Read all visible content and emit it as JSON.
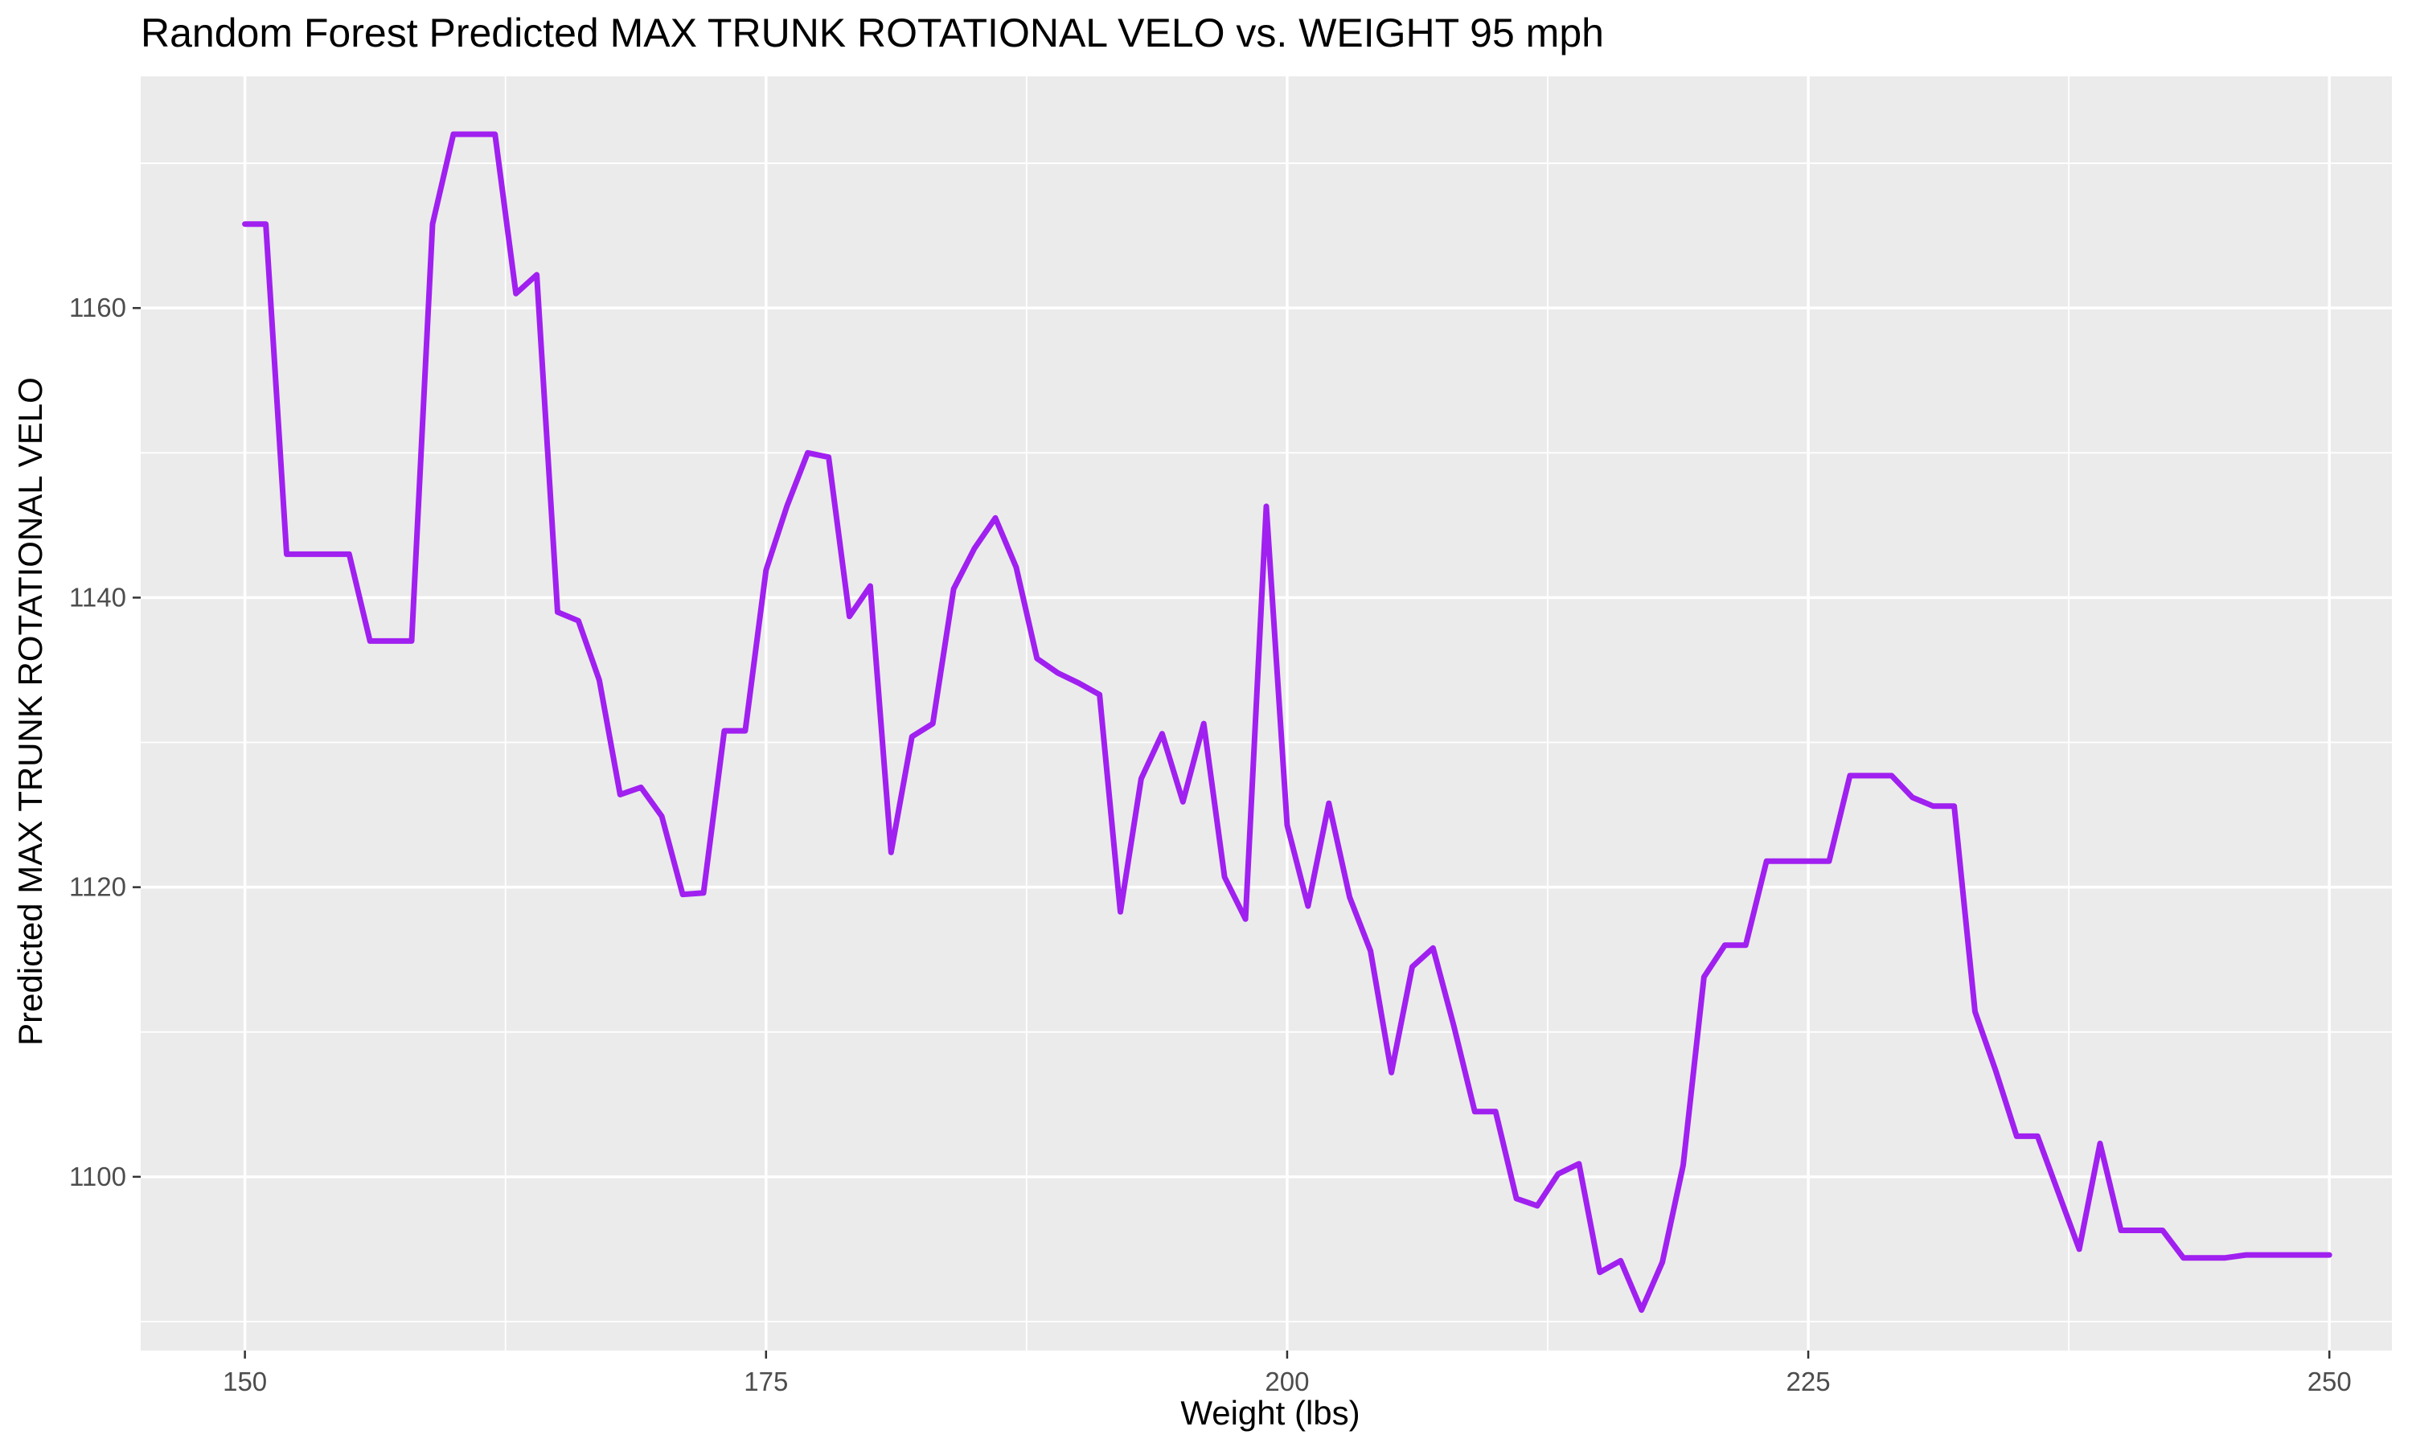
{
  "chart_data": {
    "type": "line",
    "title": "Random Forest Predicted MAX TRUNK ROTATIONAL VELO vs. WEIGHT 95 mph",
    "xlabel": "Weight (lbs)",
    "ylabel": "Predicted MAX TRUNK ROTATIONAL VELO",
    "xlim": [
      145,
      253
    ],
    "ylim": [
      1088,
      1176
    ],
    "x_ticks": [
      150,
      175,
      200,
      225,
      250
    ],
    "y_ticks": [
      1100,
      1120,
      1140,
      1160
    ],
    "grid": true,
    "background": "#ebebeb",
    "line_color": "#a020f0",
    "series": [
      {
        "x": [
          150,
          151,
          152,
          153,
          154,
          155,
          156,
          157,
          158,
          159,
          160,
          161,
          162,
          163,
          164,
          165,
          166,
          167,
          168,
          169,
          170,
          171,
          172,
          173,
          174,
          175,
          176,
          177,
          178,
          179,
          180,
          181,
          182,
          183,
          184,
          185,
          186,
          187,
          188,
          189,
          190,
          191,
          192,
          193,
          194,
          195,
          196,
          197,
          198,
          199,
          200,
          201,
          202,
          203,
          204,
          205,
          206,
          207,
          208,
          209,
          210,
          211,
          212,
          213,
          214,
          215,
          216,
          217,
          218,
          219,
          220,
          221,
          222,
          223,
          224,
          225,
          226,
          227,
          228,
          229,
          230,
          231,
          232,
          233,
          234,
          235,
          236,
          237,
          238,
          239,
          240,
          241,
          242,
          243,
          244,
          245,
          246,
          247,
          248,
          249,
          250
        ],
        "y": [
          1165.8,
          1165.8,
          1143.0,
          1143.0,
          1143.0,
          1143.0,
          1137.0,
          1137.0,
          1137.0,
          1165.8,
          1172.0,
          1172.0,
          1172.0,
          1161.0,
          1162.3,
          1139.0,
          1138.4,
          1134.3,
          1126.4,
          1126.9,
          1124.9,
          1119.5,
          1119.6,
          1130.8,
          1130.8,
          1141.9,
          1146.3,
          1150.0,
          1149.7,
          1138.7,
          1140.8,
          1122.4,
          1130.4,
          1131.3,
          1140.6,
          1143.4,
          1145.5,
          1142.1,
          1135.8,
          1134.8,
          1134.1,
          1133.3,
          1118.3,
          1127.5,
          1130.6,
          1125.9,
          1131.3,
          1120.7,
          1117.8,
          1146.3,
          1124.3,
          1118.7,
          1125.8,
          1119.3,
          1115.6,
          1107.2,
          1114.5,
          1115.8,
          1110.4,
          1104.5,
          1104.5,
          1098.5,
          1098.0,
          1100.2,
          1100.9,
          1093.4,
          1094.2,
          1090.8,
          1094.1,
          1100.8,
          1113.8,
          1116.0,
          1116.0,
          1121.8,
          1121.8,
          1121.8,
          1121.8,
          1127.7,
          1127.7,
          1127.7,
          1126.2,
          1125.6,
          1125.6,
          1111.4,
          1107.3,
          1102.8,
          1102.8,
          1098.9,
          1095.0,
          1102.3,
          1096.3,
          1096.3,
          1096.3,
          1094.4,
          1094.4,
          1094.4,
          1094.6,
          1094.6,
          1094.6,
          1094.6,
          1094.6
        ]
      }
    ]
  }
}
